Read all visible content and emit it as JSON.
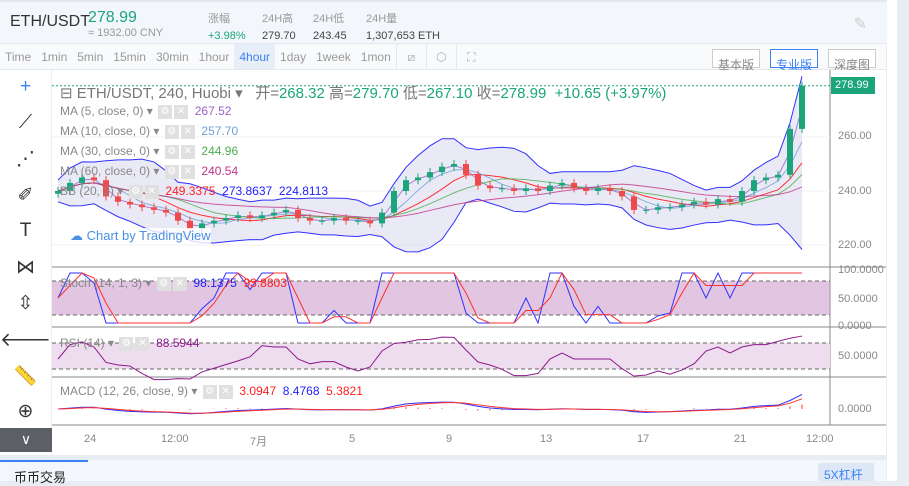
{
  "header": {
    "pair": "ETH/USDT",
    "price": "278.99",
    "cny": "≈ 1932.00 CNY",
    "stats": [
      {
        "label": "涨幅",
        "value": "+3.98%"
      },
      {
        "label": "24H高",
        "value": "279.70"
      },
      {
        "label": "24H低",
        "value": "243.45"
      },
      {
        "label": "24H量",
        "value": "1,307,653 ETH"
      }
    ]
  },
  "toolbar": {
    "intervals": [
      "Time",
      "1min",
      "5min",
      "15min",
      "30min",
      "1hour",
      "4hour",
      "1day",
      "1week",
      "1mon"
    ],
    "selected": "4hour",
    "views": [
      "基本版",
      "专业版",
      "深度图"
    ],
    "active_view": "专业版"
  },
  "chart": {
    "title": "ETH/USDT, 240, Huobi",
    "open_label": "开=",
    "open": "268.32",
    "high_label": "高=",
    "high": "279.70",
    "low_label": "低=",
    "low": "267.10",
    "close_label": "收=",
    "close": "278.99",
    "change": "+10.65 (+3.97%)",
    "last_price_tag": "278.99",
    "indicators": [
      {
        "label": "MA (5, close, 0)",
        "values": [
          "267.52"
        ],
        "colors": [
          "#9c5fc8"
        ]
      },
      {
        "label": "MA (10, close, 0)",
        "values": [
          "257.70"
        ],
        "colors": [
          "#6fa0d8"
        ]
      },
      {
        "label": "MA (30, close, 0)",
        "values": [
          "244.96"
        ],
        "colors": [
          "#4caf50"
        ]
      },
      {
        "label": "MA (60, close, 0)",
        "values": [
          "240.54"
        ],
        "colors": [
          "#c2338a"
        ]
      },
      {
        "label": "BB (20, 2)",
        "values": [
          "249.3375",
          "273.8637",
          "224.8113"
        ],
        "colors": [
          "#ff2020",
          "#1f1fff",
          "#1f1fff"
        ]
      }
    ],
    "watermark": "Chart by TradingView",
    "price_axis": [
      "260.00",
      "240.00",
      "220.00"
    ],
    "stoch": {
      "label": "Stoch (14, 1, 3)",
      "values": [
        "98.1375",
        "93.8803"
      ],
      "axis": [
        "100.0000",
        "50.0000",
        "0.0000"
      ]
    },
    "rsi": {
      "label": "RSI (14)",
      "value": "88.5944",
      "axis": [
        "50.0000"
      ]
    },
    "macd": {
      "label": "MACD (12, 26, close, 9)",
      "values": [
        "3.0947",
        "8.4768",
        "5.3821"
      ],
      "axis": [
        "0.0000"
      ]
    },
    "time_axis": [
      "24",
      "12:00",
      "7月",
      "5",
      "9",
      "13",
      "17",
      "21",
      "12:00"
    ]
  },
  "bottom": {
    "tab": "币币交易",
    "right_button": "5X杠杆"
  },
  "colors": {
    "up": "#1aa57a",
    "down": "#f04a4a",
    "accent": "#3b82f6"
  },
  "chart_data": {
    "type": "candlestick",
    "note_series": "close",
    "close": [
      240,
      243,
      245,
      244,
      238,
      236,
      235,
      234,
      233,
      232,
      229,
      226,
      228,
      229,
      230,
      231,
      230,
      231,
      232,
      233,
      230,
      229,
      229,
      230,
      229,
      229,
      228,
      232,
      240,
      244,
      245,
      247,
      249,
      250,
      246,
      242,
      241,
      241,
      240,
      241,
      240,
      242,
      243,
      241,
      240,
      241,
      240,
      238,
      233,
      233,
      234,
      234,
      235,
      236,
      235,
      237,
      236,
      240,
      244,
      245,
      246,
      263,
      278.99
    ],
    "ylim": [
      215,
      282
    ]
  }
}
